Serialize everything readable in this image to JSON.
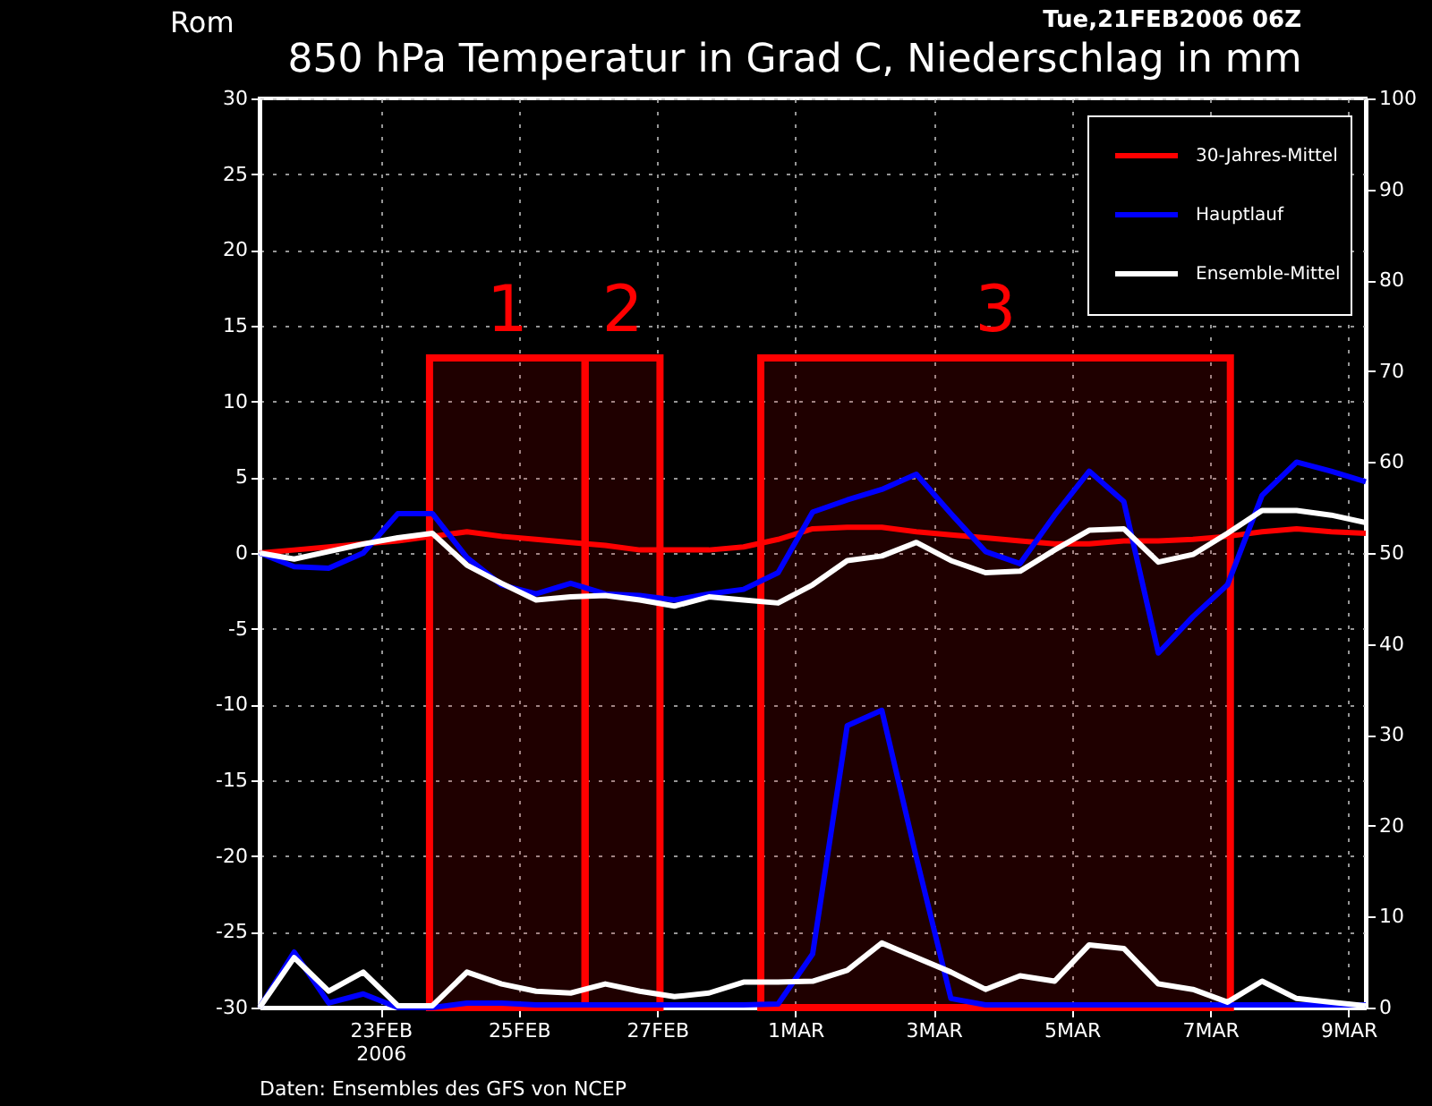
{
  "chart_data": {
    "type": "line",
    "title": "850 hPa Temperatur in Grad C, Niederschlag in mm",
    "subtitle": "Tue,21FEB2006 06Z",
    "annotations": [
      "Rom",
      "Daten: Ensembles des GFS von NCEP"
    ],
    "x": [
      "2006-02-21T06:00",
      "2006-02-21T18:00",
      "2006-02-22T06:00",
      "2006-02-22T18:00",
      "2006-02-23T06:00",
      "2006-02-23T18:00",
      "2006-02-24T06:00",
      "2006-02-24T18:00",
      "2006-02-25T06:00",
      "2006-02-25T18:00",
      "2006-02-26T06:00",
      "2006-02-26T18:00",
      "2006-02-27T06:00",
      "2006-02-27T18:00",
      "2006-02-28T06:00",
      "2006-02-28T18:00",
      "2006-03-01T06:00",
      "2006-03-01T18:00",
      "2006-03-02T06:00",
      "2006-03-02T18:00",
      "2006-03-03T06:00",
      "2006-03-03T18:00",
      "2006-03-04T06:00",
      "2006-03-04T18:00",
      "2006-03-05T06:00",
      "2006-03-05T18:00",
      "2006-03-06T06:00",
      "2006-03-06T18:00",
      "2006-03-07T06:00",
      "2006-03-07T18:00",
      "2006-03-08T06:00",
      "2006-03-08T18:00",
      "2006-03-09T06:00"
    ],
    "xlim": [
      "2006-02-21T06:00",
      "2006-03-09T06:00"
    ],
    "xticks": [
      {
        "value": "2006-02-23",
        "label": "23FEB\n2006"
      },
      {
        "value": "2006-02-25",
        "label": "25FEB"
      },
      {
        "value": "2006-02-27",
        "label": "27FEB"
      },
      {
        "value": "2006-03-01",
        "label": "1MAR"
      },
      {
        "value": "2006-03-03",
        "label": "3MAR"
      },
      {
        "value": "2006-03-05",
        "label": "5MAR"
      },
      {
        "value": "2006-03-07",
        "label": "7MAR"
      },
      {
        "value": "2006-03-09",
        "label": "9MAR"
      }
    ],
    "ylim": [
      -30,
      30
    ],
    "yticks": [
      -30,
      -25,
      -20,
      -15,
      -10,
      -5,
      0,
      5,
      10,
      15,
      20,
      25,
      30
    ],
    "y2lim": [
      0,
      100
    ],
    "y2ticks": [
      0,
      10,
      20,
      30,
      40,
      50,
      60,
      70,
      80,
      90,
      100
    ],
    "grid": true,
    "legend": "top right",
    "series": [
      {
        "name": "30-Jahres-Mittel",
        "color": "#ff0000",
        "values": [
          0,
          0.2,
          0.4,
          0.6,
          0.8,
          1.1,
          1.4,
          1.1,
          0.9,
          0.7,
          0.5,
          0.2,
          0.2,
          0.2,
          0.4,
          0.9,
          1.6,
          1.7,
          1.7,
          1.4,
          1.2,
          1.0,
          0.8,
          0.6,
          0.6,
          0.8,
          0.8,
          0.9,
          1.1,
          1.4,
          1.6,
          1.4,
          1.3
        ]
      },
      {
        "name": "Hauptlauf",
        "color": "#0000ff",
        "values": [
          0,
          -0.9,
          -1.0,
          0,
          2.6,
          2.6,
          -0.3,
          -2.1,
          -2.7,
          -2.0,
          -2.7,
          -2.8,
          -3.1,
          -2.7,
          -2.4,
          -1.3,
          2.7,
          3.5,
          4.2,
          5.2,
          2.6,
          0.1,
          -0.7,
          2.5,
          5.4,
          3.4,
          -6.6,
          -4.2,
          -2.1,
          3.8,
          6.0,
          5.4,
          4.7
        ]
      },
      {
        "name": "Ensemble-Mittel",
        "color": "#ffffff",
        "values": [
          0,
          -0.4,
          0.1,
          0.6,
          1.0,
          1.3,
          -0.8,
          -2.0,
          -3.1,
          -2.9,
          -2.8,
          -3.1,
          -3.5,
          -2.9,
          -3.1,
          -3.3,
          -2.1,
          -0.5,
          -0.2,
          0.7,
          -0.5,
          -1.3,
          -1.2,
          0.2,
          1.5,
          1.6,
          -0.6,
          -0.1,
          1.3,
          2.8,
          2.8,
          2.5,
          2.0
        ]
      },
      {
        "color": "#0000ff",
        "axis": "y2",
        "values": [
          0,
          6.1,
          0.5,
          1.5,
          0,
          0,
          0.5,
          0.5,
          0.3,
          0.3,
          0.3,
          0.3,
          0.3,
          0.3,
          0.3,
          0.4,
          5.9,
          31,
          32.7,
          16.5,
          1.0,
          0.3,
          0.3,
          0.3,
          0.3,
          0.3,
          0.3,
          0.3,
          0.3,
          0.3,
          0.3,
          0.3,
          0.3
        ]
      },
      {
        "color": "#ffffff",
        "axis": "y2",
        "values": [
          0,
          5.5,
          1.8,
          3.9,
          0.2,
          0.2,
          3.9,
          2.6,
          1.8,
          1.6,
          2.6,
          1.8,
          1.2,
          1.6,
          2.8,
          2.8,
          2.9,
          4.1,
          7.1,
          5.5,
          3.9,
          2.0,
          3.5,
          2.9,
          6.9,
          6.5,
          2.6,
          2.0,
          0.6,
          2.9,
          1.0,
          0.6,
          0.2
        ]
      }
    ],
    "bands": [
      {
        "axis": "x",
        "from": "2006-02-23T17:00",
        "to": "2006-02-25T23:00",
        "label": "1",
        "color": "#ff0000"
      },
      {
        "axis": "x",
        "from": "2006-02-25T23:00",
        "to": "2006-02-27T01:00",
        "label": "2",
        "color": "#ff0000"
      },
      {
        "axis": "x",
        "from": "2006-02-28T12:00",
        "to": "2006-03-07T07:00",
        "label": "3",
        "color": "#ff0000"
      }
    ]
  }
}
